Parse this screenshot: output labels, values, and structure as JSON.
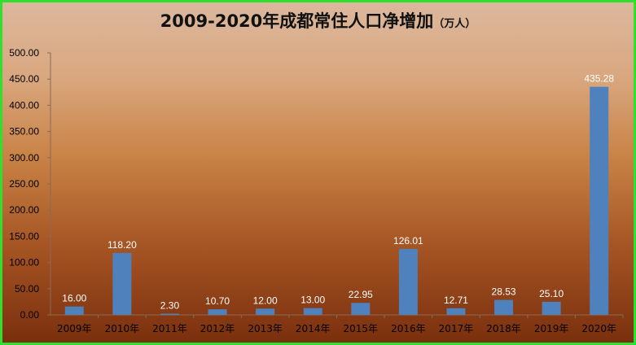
{
  "chart_data": {
    "type": "bar",
    "title": "2009-2020年成都常住人口净增加",
    "title_unit": "（万人）",
    "categories": [
      "2009年",
      "2010年",
      "2011年",
      "2012年",
      "2013年",
      "2014年",
      "2015年",
      "2016年",
      "2017年",
      "2018年",
      "2019年",
      "2020年"
    ],
    "values": [
      16.0,
      118.2,
      2.3,
      10.7,
      12.0,
      13.0,
      22.95,
      126.01,
      12.71,
      28.53,
      25.1,
      435.28
    ],
    "data_labels": [
      "16.00",
      "118.20",
      "2.30",
      "10.70",
      "12.00",
      "13.00",
      "22.95",
      "126.01",
      "12.71",
      "28.53",
      "25.10",
      "435.28"
    ],
    "y_ticks": [
      "0.00",
      "50.00",
      "100.00",
      "150.00",
      "200.00",
      "250.00",
      "300.00",
      "350.00",
      "400.00",
      "450.00",
      "500.00"
    ],
    "ylim": [
      0,
      500
    ],
    "xlabel": "",
    "ylabel": "",
    "grid": false,
    "legend": "none",
    "bar_color": "#4f81bd",
    "label_color": "#ffffff",
    "frame_color": "#2fe02f"
  }
}
